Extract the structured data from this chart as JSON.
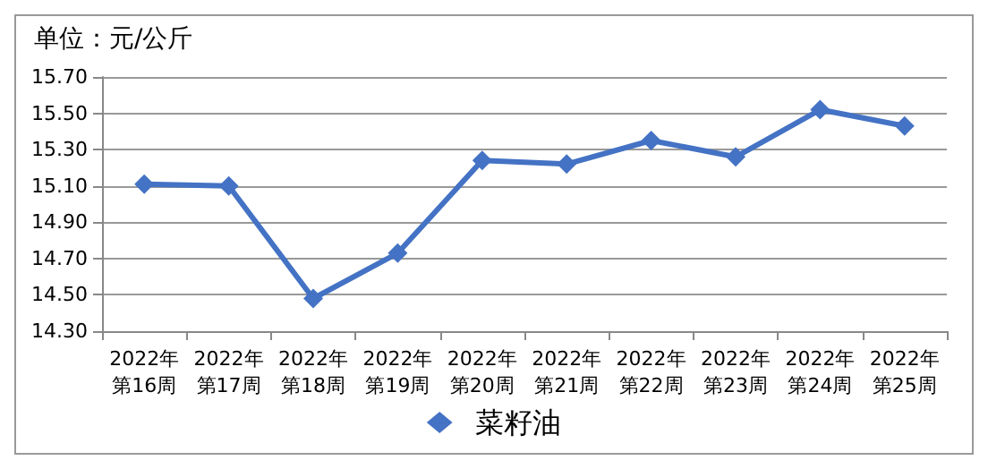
{
  "chart_data": {
    "type": "line",
    "ylabel": "单位：元/公斤",
    "categories": [
      "2022年第16周",
      "2022年第17周",
      "2022年第18周",
      "2022年第19周",
      "2022年第20周",
      "2022年第21周",
      "2022年第22周",
      "2022年第23周",
      "2022年第24周",
      "2022年第25周"
    ],
    "series": [
      {
        "name": "菜籽油",
        "color": "#4472c4",
        "values": [
          15.11,
          15.1,
          14.48,
          14.73,
          15.24,
          15.22,
          15.35,
          15.26,
          15.52,
          15.43
        ]
      }
    ],
    "ylim": [
      14.3,
      15.7
    ],
    "yticks": [
      {
        "value": 14.3,
        "label": "14.30"
      },
      {
        "value": 14.5,
        "label": "14.50"
      },
      {
        "value": 14.7,
        "label": "14.70"
      },
      {
        "value": 14.9,
        "label": "14.90"
      },
      {
        "value": 15.1,
        "label": "15.10"
      },
      {
        "value": 15.3,
        "label": "15.30"
      },
      {
        "value": 15.5,
        "label": "15.50"
      },
      {
        "value": 15.7,
        "label": "15.70"
      }
    ],
    "grid": "y",
    "legend": "bottom",
    "marker": "diamond",
    "line_style": "solid"
  }
}
